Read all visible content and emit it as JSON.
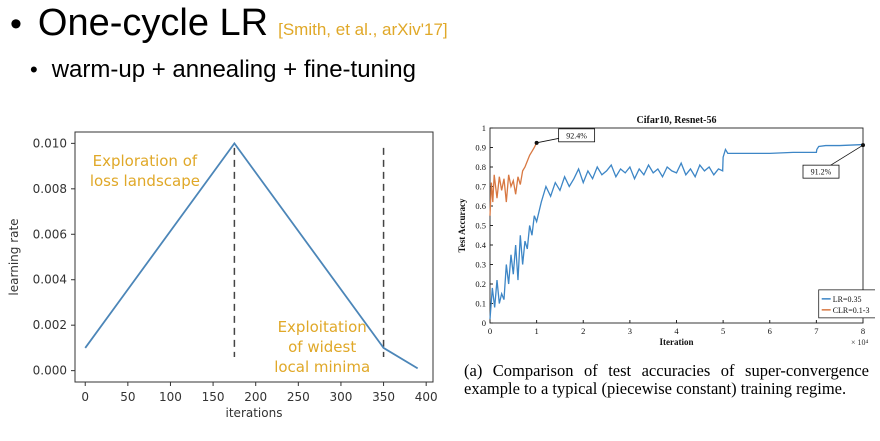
{
  "header": {
    "title": "One-cycle LR",
    "citation": "[Smith, et al., arXiv'17]",
    "subtitle": "warm-up + annealing + fine-tuning",
    "bullet_glyph": "•"
  },
  "chart_data": [
    {
      "type": "line",
      "title": "",
      "xlabel": "iterations",
      "ylabel": "learning rate",
      "xlim": [
        -12,
        408
      ],
      "ylim": [
        -0.0005,
        0.0105
      ],
      "x_ticks": [
        0,
        50,
        100,
        150,
        200,
        250,
        300,
        350,
        400
      ],
      "y_ticks": [
        0.0,
        0.002,
        0.004,
        0.006,
        0.008,
        0.01
      ],
      "y_tick_labels": [
        "0.000",
        "0.002",
        "0.004",
        "0.006",
        "0.008",
        "0.010"
      ],
      "series": [
        {
          "x": [
            0,
            175,
            350,
            390
          ],
          "y": [
            0.001,
            0.01,
            0.001,
            0.0001
          ],
          "color": "#4c86b8"
        }
      ],
      "vlines": [
        175,
        350
      ],
      "annotations": [
        {
          "lines": [
            "Exploration of",
            "loss landscape"
          ],
          "x": 70,
          "y": 0.009,
          "color": "#e0a828"
        },
        {
          "lines": [
            "Exploitation",
            "of widest",
            "local minima"
          ],
          "x": 278,
          "y": 0.0017,
          "color": "#e0a828"
        }
      ],
      "grid": false
    },
    {
      "type": "line",
      "title": "Cifar10, Resnet-56",
      "xlabel": "Iteration",
      "ylabel": "Test Accuracy",
      "x_multiplier": "× 10⁴",
      "xlim": [
        0,
        8
      ],
      "ylim": [
        0,
        1
      ],
      "x_ticks": [
        0,
        1,
        2,
        3,
        4,
        5,
        6,
        7,
        8
      ],
      "y_ticks": [
        0,
        0.1,
        0.2,
        0.3,
        0.4,
        0.5,
        0.6,
        0.7,
        0.8,
        0.9,
        1
      ],
      "y_tick_labels": [
        "0",
        "0.1",
        "0.2",
        "0.3",
        "0.4",
        "0.5",
        "0.6",
        "0.7",
        "0.8",
        "0.9",
        "1"
      ],
      "series": [
        {
          "name": "LR=0.35",
          "color": "#3d86c6",
          "x": [
            0,
            0.05,
            0.1,
            0.15,
            0.2,
            0.25,
            0.3,
            0.35,
            0.4,
            0.45,
            0.5,
            0.55,
            0.6,
            0.65,
            0.7,
            0.75,
            0.8,
            0.85,
            0.9,
            0.95,
            1.0,
            1.1,
            1.2,
            1.3,
            1.4,
            1.5,
            1.6,
            1.7,
            1.8,
            1.9,
            2.0,
            2.1,
            2.2,
            2.3,
            2.4,
            2.5,
            2.6,
            2.7,
            2.8,
            2.9,
            3.0,
            3.1,
            3.2,
            3.3,
            3.4,
            3.5,
            3.6,
            3.7,
            3.8,
            3.9,
            4.0,
            4.1,
            4.2,
            4.3,
            4.4,
            4.5,
            4.6,
            4.7,
            4.8,
            4.9,
            4.99,
            5.0,
            5.05,
            5.1,
            5.3,
            5.6,
            6.0,
            6.5,
            7.0,
            7.01,
            7.05,
            7.2,
            7.5,
            8.0
          ],
          "y": [
            0.02,
            0.18,
            0.08,
            0.22,
            0.1,
            0.15,
            0.12,
            0.3,
            0.2,
            0.35,
            0.25,
            0.4,
            0.22,
            0.45,
            0.3,
            0.42,
            0.38,
            0.5,
            0.45,
            0.55,
            0.52,
            0.62,
            0.7,
            0.65,
            0.72,
            0.68,
            0.75,
            0.7,
            0.74,
            0.79,
            0.72,
            0.78,
            0.74,
            0.8,
            0.76,
            0.78,
            0.81,
            0.75,
            0.79,
            0.77,
            0.8,
            0.74,
            0.79,
            0.76,
            0.81,
            0.77,
            0.79,
            0.75,
            0.8,
            0.78,
            0.77,
            0.82,
            0.76,
            0.79,
            0.75,
            0.81,
            0.78,
            0.8,
            0.76,
            0.79,
            0.78,
            0.85,
            0.89,
            0.87,
            0.87,
            0.87,
            0.87,
            0.875,
            0.875,
            0.89,
            0.905,
            0.91,
            0.91,
            0.915
          ]
        },
        {
          "name": "CLR=0.1-3",
          "color": "#d87842",
          "x": [
            0,
            0.03,
            0.06,
            0.09,
            0.12,
            0.15,
            0.2,
            0.25,
            0.3,
            0.35,
            0.4,
            0.45,
            0.5,
            0.55,
            0.6,
            0.65,
            0.7,
            0.75,
            0.8,
            0.85,
            0.9,
            0.95,
            1.0
          ],
          "y": [
            0.55,
            0.72,
            0.62,
            0.76,
            0.7,
            0.64,
            0.75,
            0.68,
            0.74,
            0.62,
            0.76,
            0.7,
            0.73,
            0.66,
            0.75,
            0.71,
            0.78,
            0.8,
            0.83,
            0.86,
            0.88,
            0.9,
            0.924
          ]
        }
      ],
      "callouts": [
        {
          "label": "92.4%",
          "x": 1.0,
          "y": 0.924
        },
        {
          "label": "91.2%",
          "x": 8.0,
          "y": 0.912
        }
      ],
      "legend": "bottom-right",
      "grid": false
    }
  ],
  "caption": "(a) Comparison of test accuracies of super-convergence example to a typical (piecewise constant) training regime."
}
